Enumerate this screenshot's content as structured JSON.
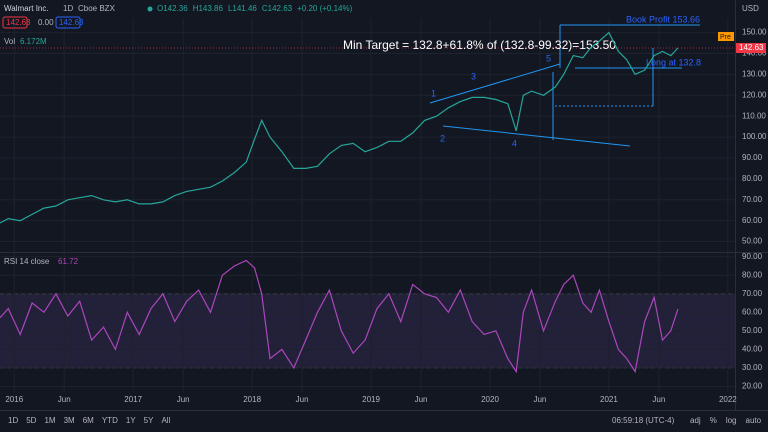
{
  "header": {
    "symbol": "Walmart Inc.",
    "interval": "1D",
    "exchange": "Cboe BZX",
    "ohlc": [
      "O142.36",
      "H143.86",
      "L141.46",
      "C142.63",
      "+0.20 (+0.14%)"
    ],
    "bid": "142.63",
    "spread": "0.00",
    "ask": "142.63",
    "volume_label": "Vol",
    "volume_value": "6.172M",
    "currency": "USD"
  },
  "chart_data": [
    {
      "type": "line",
      "color": "#26a69a",
      "grid": true,
      "x": [
        2015.85,
        2015.95,
        2016.05,
        2016.15,
        2016.25,
        2016.35,
        2016.45,
        2016.55,
        2016.65,
        2016.75,
        2016.85,
        2016.95,
        2017.05,
        2017.15,
        2017.25,
        2017.35,
        2017.45,
        2017.55,
        2017.65,
        2017.75,
        2017.85,
        2017.95,
        2018.02,
        2018.08,
        2018.15,
        2018.25,
        2018.35,
        2018.45,
        2018.55,
        2018.65,
        2018.75,
        2018.85,
        2018.95,
        2019.05,
        2019.15,
        2019.25,
        2019.35,
        2019.45,
        2019.55,
        2019.65,
        2019.75,
        2019.85,
        2019.95,
        2020.05,
        2020.15,
        2020.22,
        2020.28,
        2020.35,
        2020.45,
        2020.55,
        2020.62,
        2020.7,
        2020.78,
        2020.85,
        2020.92,
        2021.0,
        2021.08,
        2021.15,
        2021.22,
        2021.3,
        2021.38,
        2021.45,
        2021.52,
        2021.58
      ],
      "values": [
        58,
        61,
        60,
        63,
        66,
        67,
        70,
        71,
        72,
        70,
        69,
        70,
        68,
        68,
        69,
        72,
        74,
        75,
        76,
        79,
        83,
        88,
        99,
        108,
        100,
        93,
        85,
        85,
        86,
        92,
        96,
        97,
        93,
        95,
        98,
        98,
        102,
        108,
        110,
        114,
        117,
        119,
        119,
        118,
        116,
        103,
        120,
        122,
        120,
        124,
        130,
        139,
        138,
        143,
        146,
        150,
        141,
        137,
        130,
        132,
        139,
        141,
        139,
        142.63
      ],
      "xlim": [
        2015.88,
        2022.06
      ],
      "ylim": [
        45,
        157
      ],
      "yticks": [
        {
          "value": 50,
          "label": "50.00"
        },
        {
          "value": 60,
          "label": "60.00"
        },
        {
          "value": 70,
          "label": "70.00"
        },
        {
          "value": 80,
          "label": "80.00"
        },
        {
          "value": 90,
          "label": "90.00"
        },
        {
          "value": 100,
          "label": "100.00"
        },
        {
          "value": 110,
          "label": "110.00"
        },
        {
          "value": 120,
          "label": "120.00"
        },
        {
          "value": 130,
          "label": "130.00"
        },
        {
          "value": 140,
          "label": "140.00"
        },
        {
          "value": 150,
          "label": "150.00"
        }
      ],
      "last_price_label": "142.63",
      "pre_label": "Pre",
      "annotations": {
        "target": "Min Target = 132.8+61.8% of (132.8-99.32)=153.50",
        "book_profit": "Book Profit 153.66",
        "long": "Long at 132.8",
        "waves": [
          "1",
          "2",
          "3",
          "4",
          "5"
        ]
      }
    },
    {
      "type": "line",
      "title": "RSI 14 close",
      "value_label": "61.72",
      "color": "#ab47bc",
      "grid": true,
      "bands": [
        30,
        70
      ],
      "x": [
        2015.85,
        2015.95,
        2016.05,
        2016.15,
        2016.25,
        2016.35,
        2016.45,
        2016.55,
        2016.65,
        2016.75,
        2016.85,
        2016.95,
        2017.05,
        2017.15,
        2017.25,
        2017.35,
        2017.45,
        2017.55,
        2017.65,
        2017.75,
        2017.85,
        2017.95,
        2018.02,
        2018.08,
        2018.15,
        2018.25,
        2018.35,
        2018.45,
        2018.55,
        2018.65,
        2018.75,
        2018.85,
        2018.95,
        2019.05,
        2019.15,
        2019.25,
        2019.35,
        2019.45,
        2019.55,
        2019.65,
        2019.75,
        2019.85,
        2019.95,
        2020.05,
        2020.15,
        2020.22,
        2020.28,
        2020.35,
        2020.45,
        2020.55,
        2020.62,
        2020.7,
        2020.78,
        2020.85,
        2020.92,
        2021.0,
        2021.08,
        2021.15,
        2021.22,
        2021.3,
        2021.38,
        2021.45,
        2021.52,
        2021.58
      ],
      "values": [
        55,
        62,
        48,
        65,
        60,
        70,
        58,
        66,
        45,
        52,
        40,
        60,
        48,
        62,
        70,
        55,
        66,
        72,
        60,
        80,
        85,
        88,
        84,
        70,
        35,
        40,
        30,
        45,
        60,
        72,
        50,
        38,
        45,
        62,
        70,
        55,
        75,
        70,
        68,
        60,
        72,
        55,
        48,
        50,
        35,
        28,
        60,
        72,
        50,
        66,
        75,
        80,
        65,
        60,
        72,
        55,
        40,
        35,
        28,
        55,
        68,
        45,
        50,
        61.72
      ],
      "xlim": [
        2015.88,
        2022.06
      ],
      "ylim": [
        17,
        92
      ],
      "yticks": [
        {
          "value": 20,
          "label": "20.00"
        },
        {
          "value": 30,
          "label": "30.00"
        },
        {
          "value": 40,
          "label": "40.00"
        },
        {
          "value": 50,
          "label": "50.00"
        },
        {
          "value": 60,
          "label": "60.00"
        },
        {
          "value": 70,
          "label": "70.00"
        },
        {
          "value": 80,
          "label": "80.00"
        },
        {
          "value": 90,
          "label": "90.00"
        }
      ],
      "xticks": [
        2016,
        {
          "value": 2016.42,
          "label": "Jun"
        },
        2017,
        {
          "value": 2017.42,
          "label": "Jun"
        },
        2018,
        {
          "value": 2018.42,
          "label": "Jun"
        },
        2019,
        {
          "value": 2019.42,
          "label": "Jun"
        },
        2020,
        {
          "value": 2020.42,
          "label": "Jun"
        },
        2021,
        {
          "value": 2021.42,
          "label": "Jun"
        },
        2022
      ]
    }
  ],
  "toolbar": {
    "ranges": [
      "1D",
      "5D",
      "1M",
      "3M",
      "6M",
      "YTD",
      "1Y",
      "5Y",
      "All"
    ],
    "clock": "06:59:18 (UTC-4)",
    "options": [
      "adj",
      "%",
      "log",
      "auto"
    ]
  }
}
